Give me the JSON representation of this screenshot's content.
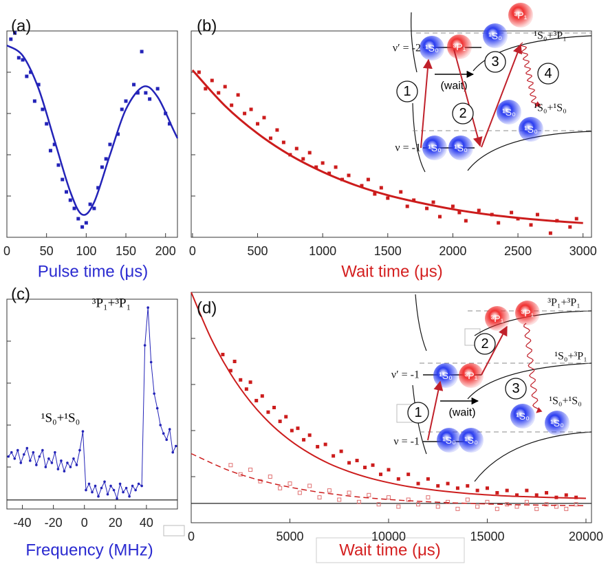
{
  "chart_data": [
    {
      "type": "scatter",
      "label": "(a)",
      "xlabel": "Pulse time (μs)",
      "xlabel_color": "#2a2ad0",
      "xlim": [
        0,
        215
      ],
      "ylim": [
        0,
        1
      ],
      "xticks": [
        0,
        50,
        100,
        150,
        200
      ],
      "yticks": [
        0.2,
        0.4,
        0.6,
        0.8
      ],
      "series": [
        {
          "color": "#2323b8",
          "marker": "square",
          "x": [
            5,
            10,
            15,
            20,
            25,
            30,
            35,
            40,
            45,
            50,
            55,
            60,
            65,
            70,
            75,
            80,
            85,
            90,
            95,
            100,
            105,
            110,
            115,
            120,
            125,
            130,
            140,
            145,
            150,
            160,
            165,
            170,
            175,
            180,
            190,
            200,
            205
          ],
          "values": [
            0.96,
            0.99,
            0.87,
            0.86,
            0.78,
            0.8,
            0.66,
            0.74,
            0.62,
            0.55,
            0.42,
            0.45,
            0.35,
            0.28,
            0.22,
            0.18,
            0.14,
            0.09,
            0.05,
            0.07,
            0.16,
            0.14,
            0.24,
            0.34,
            0.38,
            0.45,
            0.5,
            0.62,
            0.66,
            0.74,
            0.7,
            0.9,
            0.7,
            0.67,
            0.72,
            0.6,
            0.55
          ]
        },
        {
          "color": "#2323b8",
          "style": "line",
          "width": 2.5,
          "x": [
            0,
            20,
            40,
            60,
            80,
            95,
            110,
            130,
            150,
            172,
            190,
            210,
            215
          ],
          "values": [
            0.93,
            0.88,
            0.72,
            0.47,
            0.22,
            0.11,
            0.17,
            0.4,
            0.62,
            0.73,
            0.68,
            0.52,
            0.48
          ]
        }
      ]
    },
    {
      "type": "scatter",
      "label": "(b)",
      "xlabel": "Wait time (μs)",
      "xlabel_color": "#d42020",
      "xlim": [
        -10,
        3065
      ],
      "ylim": [
        0,
        1
      ],
      "xticks": [
        0,
        500,
        1000,
        1500,
        2000,
        2500,
        3000
      ],
      "yticks": [
        0.2,
        0.4,
        0.6,
        0.8
      ],
      "series": [
        {
          "color": "#cc1c1c",
          "marker": "square",
          "x": [
            50,
            100,
            150,
            200,
            250,
            300,
            350,
            400,
            450,
            500,
            550,
            600,
            650,
            700,
            750,
            800,
            850,
            900,
            950,
            1000,
            1050,
            1100,
            1150,
            1200,
            1300,
            1350,
            1400,
            1450,
            1500,
            1600,
            1650,
            1700,
            1800,
            1850,
            1900,
            2000,
            2050,
            2100,
            2200,
            2300,
            2350,
            2450,
            2500,
            2600,
            2650,
            2750,
            2800,
            2900,
            2950
          ],
          "values": [
            0.8,
            0.72,
            0.76,
            0.7,
            0.73,
            0.64,
            0.69,
            0.6,
            0.62,
            0.55,
            0.58,
            0.48,
            0.52,
            0.46,
            0.4,
            0.43,
            0.38,
            0.41,
            0.34,
            0.36,
            0.31,
            0.34,
            0.28,
            0.3,
            0.25,
            0.28,
            0.21,
            0.24,
            0.19,
            0.22,
            0.15,
            0.18,
            0.14,
            0.17,
            0.1,
            0.15,
            0.12,
            0.08,
            0.13,
            0.11,
            0.07,
            0.12,
            0.09,
            0.06,
            0.11,
            0.02,
            0.08,
            0.05,
            0.09
          ]
        },
        {
          "color": "#cc1c1c",
          "style": "line",
          "width": 3,
          "x": [
            0,
            250,
            500,
            750,
            1000,
            1250,
            1500,
            1750,
            2000,
            2250,
            2500,
            2750,
            3000
          ],
          "values": [
            0.81,
            0.637,
            0.503,
            0.398,
            0.317,
            0.253,
            0.204,
            0.167,
            0.136,
            0.112,
            0.094,
            0.08,
            0.069
          ]
        }
      ],
      "inset": {
        "levels": [
          "ν′ = -2",
          "ν = -1"
        ],
        "wait": "(wait)",
        "steps": [
          "1",
          "2",
          "3",
          "4"
        ],
        "states": [
          "¹S₀+³P₁",
          "¹S₀+¹S₀"
        ],
        "atoms": [
          {
            "label": "¹S₀",
            "color": "#2a3cf0"
          },
          {
            "label": "³P₁",
            "color": "#f03030"
          },
          {
            "label": "¹S₀",
            "color": "#2a3cf0"
          },
          {
            "label": "³P₁",
            "color": "#f03030"
          },
          {
            "label": "¹S₀",
            "color": "#2a3cf0"
          },
          {
            "label": "¹S₀",
            "color": "#2a3cf0"
          },
          {
            "label": "¹S₀",
            "color": "#2a3cf0"
          },
          {
            "label": "¹S₀",
            "color": "#2a3cf0"
          }
        ]
      }
    },
    {
      "type": "line",
      "label": "(c)",
      "xlabel": "Frequency (MHz)",
      "xlabel_color": "#2a2ad0",
      "xlim": [
        -50,
        60
      ],
      "ylim": [
        0,
        1
      ],
      "xticks": [
        -40,
        -20,
        0,
        20,
        40
      ],
      "yticks": [
        0.2,
        0.4,
        0.6,
        0.8
      ],
      "baseline": 0.043,
      "annotations": [
        "³P₁+³P₁",
        "¹S₀+¹S₀"
      ],
      "series": [
        {
          "color": "#2323b8",
          "style": "line",
          "marker": "dot",
          "width": 1,
          "x": [
            -49,
            -47,
            -45,
            -43,
            -41,
            -39,
            -37,
            -35,
            -33,
            -31,
            -29,
            -27,
            -25,
            -23,
            -21,
            -19,
            -17,
            -15,
            -13,
            -11,
            -9,
            -7,
            -5,
            -3,
            -1,
            1,
            3,
            5,
            7,
            9,
            11,
            13,
            15,
            17,
            19,
            21,
            23,
            25,
            27,
            29,
            31,
            33,
            35,
            37,
            39,
            41,
            43,
            45,
            47,
            49,
            51,
            53,
            55,
            57,
            59
          ],
          "values": [
            0.25,
            0.27,
            0.24,
            0.28,
            0.22,
            0.26,
            0.29,
            0.23,
            0.27,
            0.21,
            0.25,
            0.28,
            0.2,
            0.24,
            0.22,
            0.27,
            0.19,
            0.23,
            0.18,
            0.22,
            0.2,
            0.24,
            0.21,
            0.28,
            0.37,
            0.09,
            0.12,
            0.08,
            0.11,
            0.06,
            0.1,
            0.13,
            0.07,
            0.11,
            0.09,
            0.05,
            0.12,
            0.08,
            0.1,
            0.06,
            0.11,
            0.09,
            0.12,
            0.11,
            0.78,
            0.96,
            0.7,
            0.55,
            0.48,
            0.4,
            0.36,
            0.33,
            0.38,
            0.27,
            0.3
          ]
        }
      ]
    },
    {
      "type": "scatter",
      "label": "(d)",
      "xlabel": "Wait time (μs)",
      "xlabel_color": "#d42020",
      "xlim": [
        0,
        20280
      ],
      "ylim": [
        0,
        1
      ],
      "xticks": [
        0,
        5000,
        10000,
        15000,
        20000
      ],
      "yticks": [
        0.2,
        0.4,
        0.6,
        0.8
      ],
      "baseline": 0.084,
      "series": [
        {
          "color": "#cc1c1c",
          "marker": "square",
          "x": [
            1600,
            2000,
            2200,
            2500,
            2800,
            3000,
            3300,
            3600,
            3900,
            4200,
            4500,
            4800,
            5100,
            5400,
            5700,
            6000,
            6400,
            6800,
            7200,
            7600,
            8000,
            8400,
            8800,
            9200,
            9600,
            10000,
            10500,
            11000,
            11500,
            12000,
            12500,
            13000,
            13500,
            14000,
            14500,
            15000,
            15500,
            16000,
            16500,
            17000,
            17500,
            18000,
            18500,
            19000,
            19500
          ],
          "values": [
            0.73,
            0.66,
            0.7,
            0.62,
            0.58,
            0.61,
            0.53,
            0.55,
            0.48,
            0.5,
            0.44,
            0.46,
            0.4,
            0.41,
            0.36,
            0.38,
            0.33,
            0.34,
            0.29,
            0.31,
            0.26,
            0.27,
            0.24,
            0.25,
            0.21,
            0.23,
            0.19,
            0.21,
            0.17,
            0.19,
            0.16,
            0.17,
            0.15,
            0.16,
            0.14,
            0.15,
            0.13,
            0.14,
            0.12,
            0.14,
            0.12,
            0.13,
            0.11,
            0.12,
            0.11
          ]
        },
        {
          "color": "#e07070",
          "marker": "hollow",
          "x": [
            2000,
            2500,
            3000,
            3500,
            4000,
            4500,
            5000,
            5500,
            6000,
            6500,
            7000,
            7500,
            8000,
            8500,
            9000,
            9500,
            10000,
            10500,
            11000,
            11500,
            12000,
            12500,
            13000,
            13500,
            14000,
            14500,
            15000,
            15500,
            16000,
            16500,
            17000,
            17500,
            18000,
            18500,
            19000,
            19500
          ],
          "values": [
            0.25,
            0.21,
            0.23,
            0.18,
            0.2,
            0.15,
            0.17,
            0.13,
            0.16,
            0.11,
            0.14,
            0.1,
            0.13,
            0.09,
            0.12,
            0.08,
            0.11,
            0.07,
            0.1,
            0.08,
            0.11,
            0.07,
            0.09,
            0.06,
            0.1,
            0.07,
            0.09,
            0.06,
            0.08,
            0.07,
            0.09,
            0.06,
            0.08,
            0.07,
            0.06,
            0.08
          ]
        },
        {
          "color": "#cc1c1c",
          "style": "line",
          "width": 2,
          "x": [
            0,
            1000,
            2000,
            3000,
            4000,
            5000,
            6000,
            7000,
            8000,
            9000,
            10000,
            11000,
            12000,
            13000,
            14000,
            15000,
            16000,
            17000,
            18000,
            19000,
            20000
          ],
          "values": [
            1.0,
            0.801,
            0.646,
            0.525,
            0.431,
            0.358,
            0.301,
            0.256,
            0.222,
            0.195,
            0.174,
            0.157,
            0.145,
            0.135,
            0.127,
            0.121,
            0.116,
            0.113,
            0.11,
            0.108,
            0.106
          ]
        },
        {
          "color": "#cc1c1c",
          "style": "dashed",
          "width": 1.5,
          "x": [
            0,
            2000,
            4000,
            6000,
            8000,
            10000,
            12000,
            14000,
            16000,
            18000,
            20000
          ],
          "values": [
            0.3,
            0.224,
            0.173,
            0.139,
            0.116,
            0.101,
            0.091,
            0.084,
            0.079,
            0.076,
            0.074
          ]
        }
      ],
      "inset": {
        "levels": [
          "ν′ = -1",
          "ν = -1"
        ],
        "wait": "(wait)",
        "steps": [
          "1",
          "2",
          "3"
        ],
        "states": [
          "³P₁+³P₁",
          "¹S₀+³P₁",
          "¹S₀+¹S₀"
        ],
        "atoms": [
          {
            "label": "³P₁",
            "color": "#f03030"
          },
          {
            "label": "³P₁",
            "color": "#f03030"
          },
          {
            "label": "¹S₀",
            "color": "#2a3cf0"
          },
          {
            "label": "³P₁",
            "color": "#f03030"
          },
          {
            "label": "¹S₀",
            "color": "#2a3cf0"
          },
          {
            "label": "¹S₀",
            "color": "#2a3cf0"
          },
          {
            "label": "¹S₀",
            "color": "#2a3cf0"
          },
          {
            "label": "¹S₀",
            "color": "#2a3cf0"
          }
        ]
      }
    }
  ]
}
